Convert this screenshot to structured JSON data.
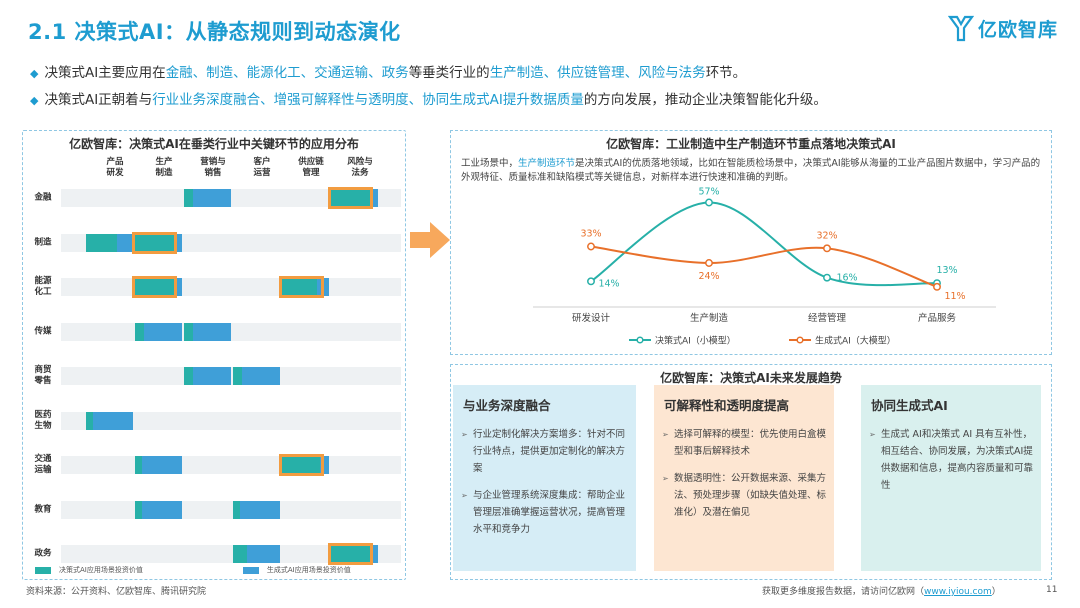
{
  "header": {
    "title": "2.1 决策式AI：从静态规则到动态演化",
    "logo_text": "亿欧智库",
    "colors": {
      "accent": "#1e9cd0",
      "teal": "#27b0a8",
      "blue": "#3f9fd8",
      "orange": "#f29c40"
    }
  },
  "bullets": [
    {
      "icon": "diamond-icon",
      "parts": [
        "决策式AI主要应用在",
        "金融、制造、能源化工、交通运输、政务",
        "等垂类行业的",
        "生产制造、供应链管理、风险与法务",
        "环节。"
      ]
    },
    {
      "icon": "diamond-icon",
      "parts": [
        "决策式AI正朝着与",
        "行业业务深度融合、增强可解释性与透明度、协同生成式AI提升数据质量",
        "的方向发展，推动企业决策智能化升级。"
      ]
    }
  ],
  "left_panel": {
    "title": "亿欧智库：决策式AI在垂类行业中关键环节的应用分布",
    "columns": [
      [
        "产品",
        "研发"
      ],
      [
        "生产",
        "制造"
      ],
      [
        "营销与",
        "销售"
      ],
      [
        "客户",
        "运营"
      ],
      [
        "供应链",
        "管理"
      ],
      [
        "风险与",
        "法务"
      ]
    ],
    "rows": [
      {
        "label": [
          "金融"
        ],
        "segs": [
          {
            "c": 2,
            "dec": 0.2,
            "gen": 0.8
          },
          {
            "c": 5,
            "dec": 0.85,
            "gen": 0.15
          }
        ],
        "highlights": [
          5
        ]
      },
      {
        "label": [
          "制造"
        ],
        "segs": [
          {
            "c": 0,
            "dec": 0.65,
            "gen": 0.35
          },
          {
            "c": 1,
            "dec": 0.85,
            "gen": 0.15
          }
        ],
        "highlights": [
          1
        ]
      },
      {
        "label": [
          "能源",
          "化工"
        ],
        "segs": [
          {
            "c": 1,
            "dec": 0.85,
            "gen": 0.15
          },
          {
            "c": 4,
            "dec": 0.75,
            "gen": 0.25
          }
        ],
        "highlights": [
          1,
          4
        ]
      },
      {
        "label": [
          "传媒"
        ],
        "segs": [
          {
            "c": 1,
            "dec": 0.2,
            "gen": 0.8
          },
          {
            "c": 2,
            "dec": 0.2,
            "gen": 0.8
          }
        ],
        "highlights": []
      },
      {
        "label": [
          "商贸",
          "零售"
        ],
        "segs": [
          {
            "c": 2,
            "dec": 0.2,
            "gen": 0.8
          },
          {
            "c": 3,
            "dec": 0.2,
            "gen": 0.8
          }
        ],
        "highlights": []
      },
      {
        "label": [
          "医药",
          "生物"
        ],
        "segs": [
          {
            "c": 0,
            "dec": 0.15,
            "gen": 0.85
          }
        ],
        "highlights": []
      },
      {
        "label": [
          "交通",
          "运输"
        ],
        "segs": [
          {
            "c": 1,
            "dec": 0.15,
            "gen": 0.85
          },
          {
            "c": 4,
            "dec": 0.8,
            "gen": 0.2
          }
        ],
        "highlights": [
          4
        ]
      },
      {
        "label": [
          "教育"
        ],
        "segs": [
          {
            "c": 1,
            "dec": 0.15,
            "gen": 0.85
          },
          {
            "c": 3,
            "dec": 0.15,
            "gen": 0.85
          }
        ],
        "highlights": []
      },
      {
        "label": [
          "政务"
        ],
        "segs": [
          {
            "c": 3,
            "dec": 0.3,
            "gen": 0.7
          },
          {
            "c": 5,
            "dec": 0.85,
            "gen": 0.15
          }
        ],
        "highlights": [
          5
        ]
      }
    ],
    "legend": [
      {
        "label": "决策式AI应用场景投资价值",
        "color": "#27b0a8"
      },
      {
        "label": "生成式AI应用场景投资价值",
        "color": "#3f9fd8"
      }
    ]
  },
  "right_top": {
    "title": "亿欧智库：工业制造中生产制造环节重点落地决策式AI",
    "desc_parts": [
      "工业场景中，",
      "生产制造环节",
      "是决策式AI的优质落地领域，比如在智能质检场景中，决策式AI能够从海量的工业产品图片数据中，学习产品的外观特征、质量标准和缺陷模式等关键信息，对新样本进行快速和准确的判断。"
    ]
  },
  "chart_data": {
    "type": "line",
    "categories": [
      "研发设计",
      "生产制造",
      "经营管理",
      "产品服务"
    ],
    "series": [
      {
        "name": "决策式AI（小模型）",
        "values": [
          14,
          57,
          16,
          13
        ],
        "labels": [
          "14%",
          "57%",
          "16%",
          "13%"
        ],
        "color": "#27b0a8"
      },
      {
        "name": "生成式AI（大模型）",
        "values": [
          33,
          24,
          32,
          11
        ],
        "labels": [
          "33%",
          "24%",
          "32%",
          "11%"
        ],
        "color": "#e8702a"
      }
    ],
    "legend_position": "bottom",
    "grid": false
  },
  "right_bottom": {
    "title": "亿欧智库：决策式AI未来发展趋势",
    "cards": [
      {
        "title": "与业务深度融合",
        "bg": "#d6edf6",
        "items": [
          "行业定制化解决方案增多：针对不同行业特点，提供更加定制化的解决方案",
          "与企业管理系统深度集成：帮助企业管理层准确掌握运营状况，提高管理水平和竞争力"
        ]
      },
      {
        "title": "可解释性和透明度提高",
        "bg": "#fde6d2",
        "items": [
          "选择可解释的模型：优先使用白盒模型和事后解释技术",
          "数据透明性：公开数据来源、采集方法、预处理步骤（如缺失值处理、标准化）及潜在偏见"
        ]
      },
      {
        "title": "协同生成式AI",
        "bg": "#d9f0ee",
        "items": [
          "生成式 AI和决策式 AI 具有互补性，相互结合、协同发展，为决策式AI提供数据和信息，提高内容质量和可靠性"
        ]
      }
    ]
  },
  "footer": {
    "source": "资料来源：公开资料、亿欧智库、腾讯研究院",
    "more_prefix": "获取更多维度报告数据，请访问亿欧网（",
    "url": "www.iyiou.com",
    "more_suffix": "）",
    "page": "11"
  }
}
